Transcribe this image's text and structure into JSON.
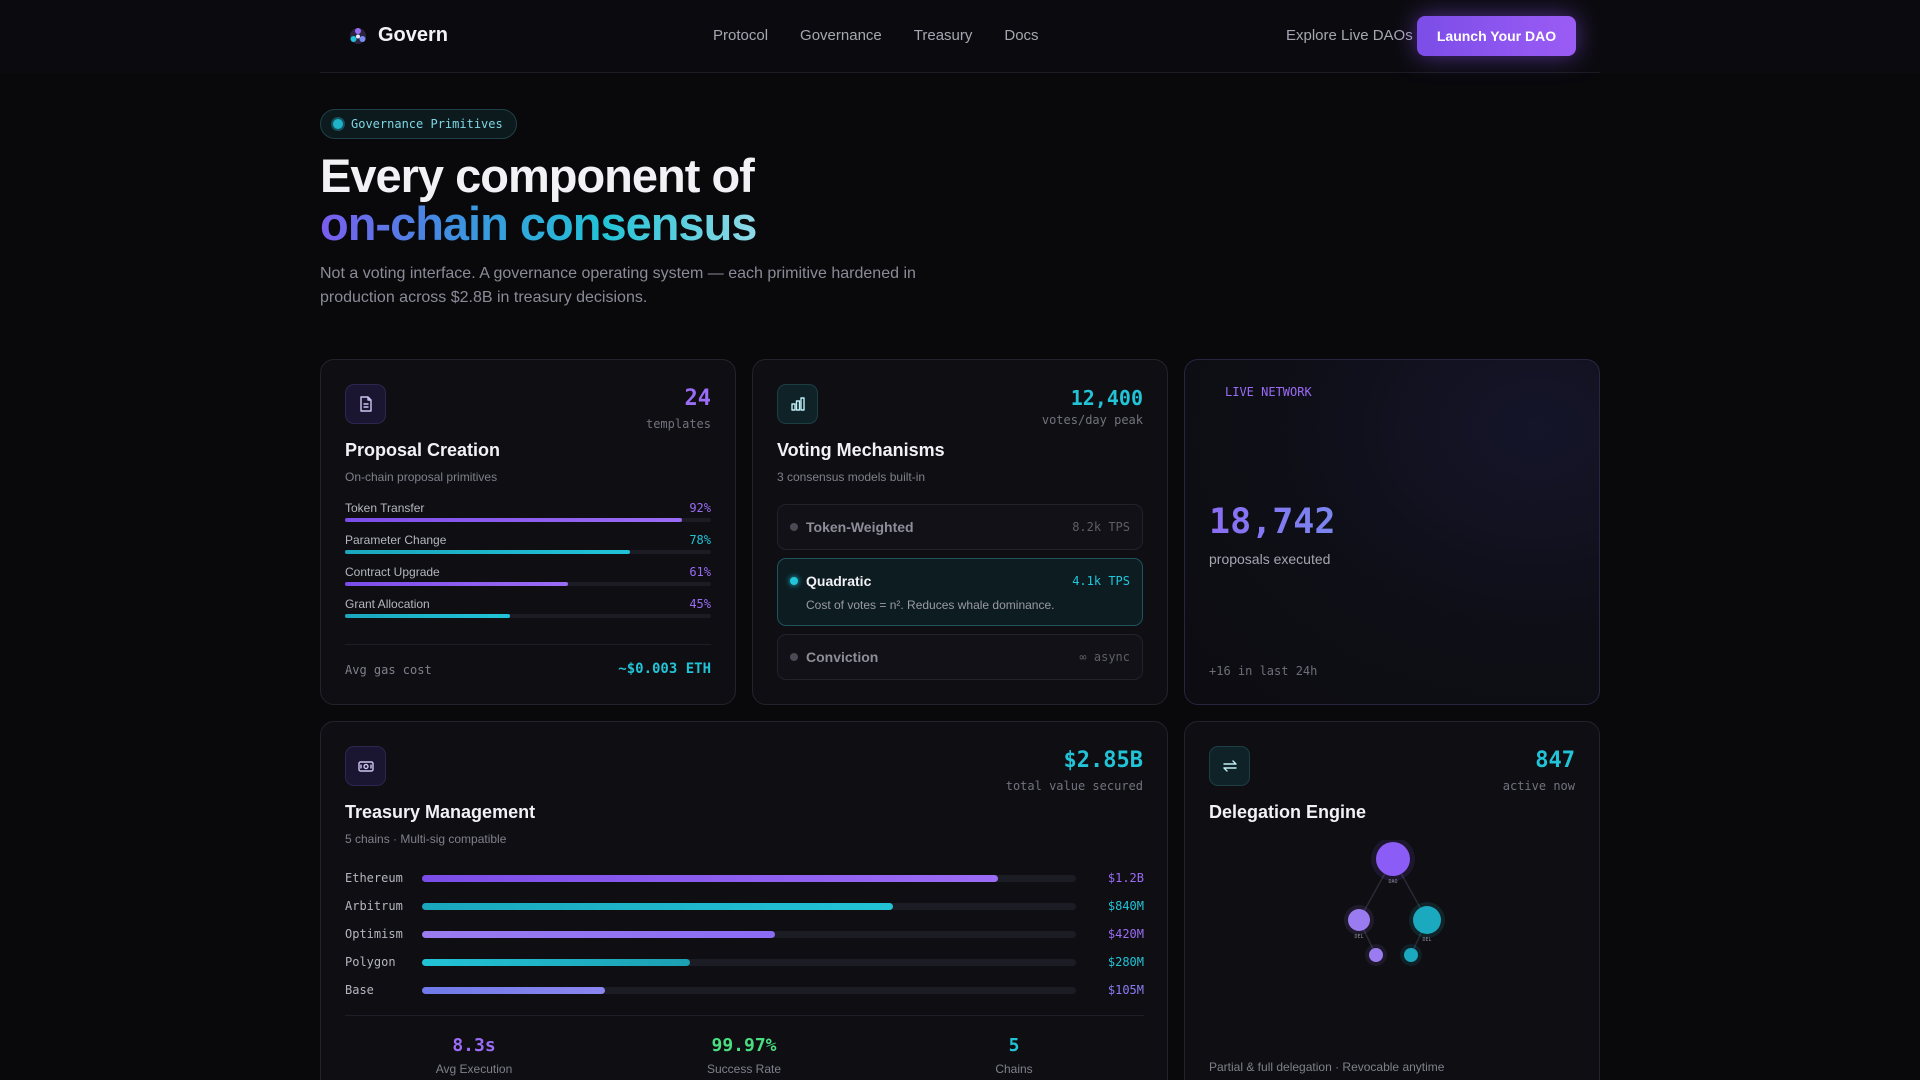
{
  "colors": {
    "purple": "#8b5cf6",
    "cyan": "#22c3d6",
    "green": "#4ade80"
  },
  "nav": {
    "brand": "Govern",
    "links": [
      "Protocol",
      "Governance",
      "Treasury",
      "Docs"
    ],
    "explore": "Explore Live DAOs",
    "launch": "Launch Your DAO"
  },
  "hero": {
    "badge": "Governance Primitives",
    "title_line1": "Every component of",
    "title_line2": "on-chain consensus",
    "subtitle": "Not a voting interface. A governance operating system — each primitive hardened in production across $2.8B in treasury decisions."
  },
  "proposal": {
    "stat": "24",
    "stat_label": "templates",
    "title": "Proposal Creation",
    "subtitle": "On-chain proposal primitives",
    "rows": [
      {
        "name": "Token Transfer",
        "pct": "92%",
        "value": 0.92,
        "color": "purple"
      },
      {
        "name": "Parameter Change",
        "pct": "78%",
        "value": 0.78,
        "color": "cyan"
      },
      {
        "name": "Contract Upgrade",
        "pct": "61%",
        "value": 0.61,
        "color": "purple"
      },
      {
        "name": "Grant Allocation",
        "pct": "45%",
        "value": 0.45,
        "color": "cyan"
      }
    ],
    "gas_label": "Avg gas cost",
    "gas_value": "~$0.003 ETH"
  },
  "voting": {
    "stat": "12,400",
    "stat_label": "votes/day peak",
    "title": "Voting Mechanisms",
    "subtitle": "3 consensus models built-in",
    "options": [
      {
        "name": "Token-Weighted",
        "tps": "8.2k TPS",
        "desc": ""
      },
      {
        "name": "Quadratic",
        "tps": "4.1k TPS",
        "desc": "Cost of votes = n². Reduces whale dominance."
      },
      {
        "name": "Conviction",
        "tps": "∞ async",
        "desc": ""
      }
    ]
  },
  "live": {
    "label": "LIVE NETWORK",
    "value": "18,742",
    "value_label": "proposals executed",
    "delta": "+16 in last 24h"
  },
  "treasury": {
    "stat": "$2.85B",
    "stat_label": "total value secured",
    "title": "Treasury Management",
    "subtitle": "5 chains · Multi-sig compatible",
    "chains": [
      {
        "name": "Ethereum",
        "value": "$1.2B",
        "share": 0.88
      },
      {
        "name": "Arbitrum",
        "value": "$840M",
        "share": 0.72
      },
      {
        "name": "Optimism",
        "value": "$420M",
        "share": 0.54
      },
      {
        "name": "Polygon",
        "value": "$280M",
        "share": 0.41
      },
      {
        "name": "Base",
        "value": "$105M",
        "share": 0.28
      }
    ],
    "stats": [
      {
        "value": "8.3s",
        "label": "Avg Execution",
        "color": "purple"
      },
      {
        "value": "99.97%",
        "label": "Success Rate",
        "color": "green"
      },
      {
        "value": "5",
        "label": "Chains",
        "color": "cyan"
      }
    ]
  },
  "delegation": {
    "stat": "847",
    "stat_label": "active now",
    "title": "Delegation Engine",
    "node_labels": [
      "DAO",
      "DEL",
      "DEL"
    ],
    "footer": "Partial & full delegation · Revocable anytime"
  }
}
